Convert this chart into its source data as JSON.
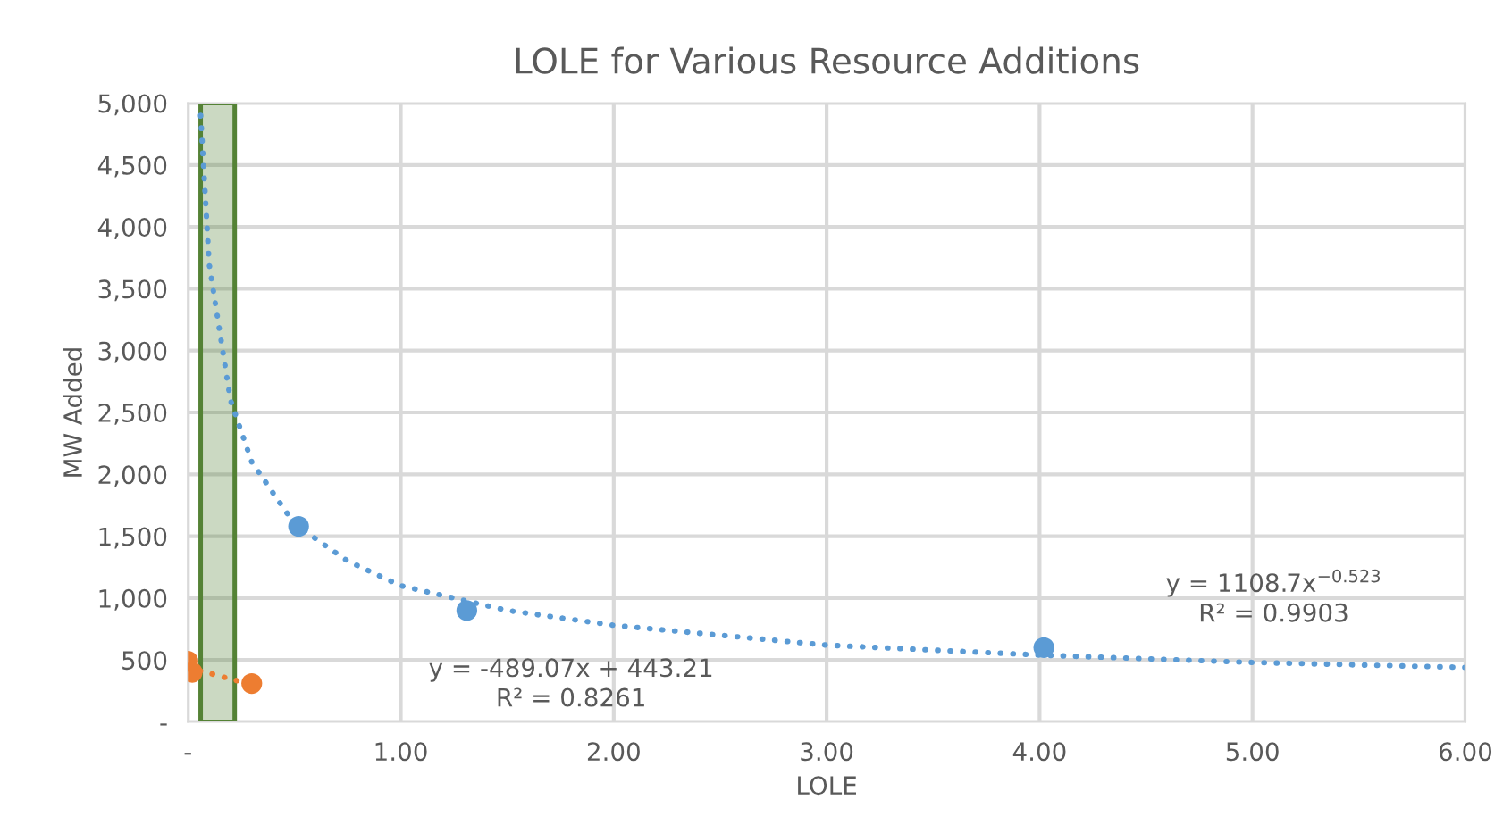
{
  "chart_data": {
    "type": "scatter",
    "title": "LOLE for Various Resource Additions",
    "xlabel": "LOLE",
    "ylabel": "MW Added",
    "series": [
      {
        "color": "#5b9bd5",
        "marker": "circle",
        "x": [
          0.52,
          1.31,
          4.02
        ],
        "values": [
          1580,
          900,
          600
        ]
      },
      {
        "color": "#ed7d31",
        "marker": "circle",
        "x": [
          0.0,
          0.02,
          0.3
        ],
        "values": [
          490,
          400,
          310
        ]
      },
      {
        "type": "line",
        "marker": "none",
        "line_style": "dotted",
        "color": "#5b9bd5",
        "x": [
          0.06,
          0.1,
          0.2,
          0.3,
          0.5,
          0.75,
          1.0,
          1.5,
          2.0,
          3.0,
          4.0,
          5.0,
          6.0
        ],
        "values": [
          4900,
          3700,
          2600,
          2100,
          1600,
          1300,
          1100,
          900,
          780,
          620,
          540,
          480,
          440
        ]
      },
      {
        "type": "line",
        "marker": "none",
        "line_style": "dotted",
        "color": "#ed7d31",
        "x": [
          0.0,
          0.3
        ],
        "values": [
          440,
          300
        ]
      }
    ],
    "bands": [
      {
        "axis": "x",
        "from": 0.06,
        "to": 0.22,
        "color": "#548235"
      }
    ],
    "annotations": [
      "y = -489.07x + 443.21\nR² = 0.8261",
      "y = 1108.7x$^{−0.523}$\nR² = 0.9903"
    ],
    "xlim": [
      0,
      6
    ],
    "xticks": [
      {
        "value": 0,
        "label": "-"
      },
      {
        "value": 1,
        "label": "1.00"
      },
      {
        "value": 2,
        "label": "2.00"
      },
      {
        "value": 3,
        "label": "3.00"
      },
      {
        "value": 4,
        "label": "4.00"
      },
      {
        "value": 5,
        "label": "5.00"
      },
      {
        "value": 6,
        "label": "6.00"
      }
    ],
    "ylim": [
      0,
      5000
    ],
    "yticks": [
      {
        "value": 0,
        "label": "-"
      },
      500,
      {
        "value": 1000,
        "label": "1,000"
      },
      {
        "value": 1500,
        "label": "1,500"
      },
      {
        "value": 2000,
        "label": "2,000"
      },
      {
        "value": 2500,
        "label": "2,500"
      },
      {
        "value": 3000,
        "label": "3,000"
      },
      {
        "value": 3500,
        "label": "3,500"
      },
      {
        "value": 4000,
        "label": "4,000"
      },
      {
        "value": 4500,
        "label": "4,500"
      },
      {
        "value": 5000,
        "label": "5,000"
      }
    ],
    "grid": true
  }
}
